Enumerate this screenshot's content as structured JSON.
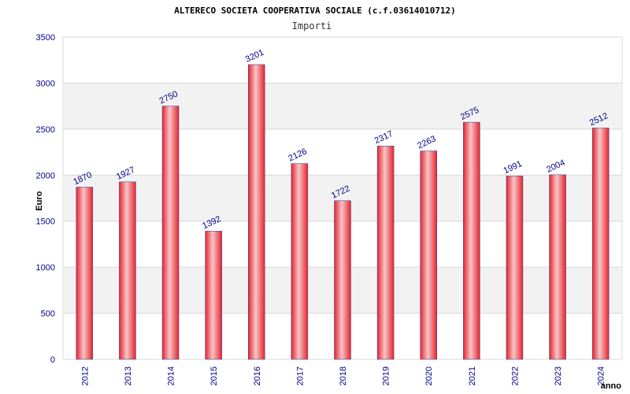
{
  "chart_data": {
    "type": "bar",
    "title": "ALTERECO SOCIETA COOPERATIVA SOCIALE (c.f.03614010712)",
    "subtitle": "Importi",
    "xlabel": "anno",
    "ylabel": "Euro",
    "categories": [
      "2012",
      "2013",
      "2014",
      "2015",
      "2016",
      "2017",
      "2018",
      "2019",
      "2020",
      "2021",
      "2022",
      "2023",
      "2024"
    ],
    "values": [
      1870,
      1927,
      2750,
      1392,
      3201,
      2126,
      1722,
      2317,
      2263,
      2575,
      1991,
      2004,
      2512
    ],
    "yticks": [
      0,
      500,
      1000,
      1500,
      2000,
      2500,
      3000,
      3500
    ],
    "ylim": [
      0,
      3500
    ],
    "grid": true,
    "legend": "none",
    "colors": {
      "bar": "#e8232b",
      "bar_highlight": "#f5c6c8",
      "bar_edge": "#2a3a9a",
      "band": "#f2f2f2",
      "grid": "#d8d8d8",
      "tick_text": "#00008b"
    }
  }
}
